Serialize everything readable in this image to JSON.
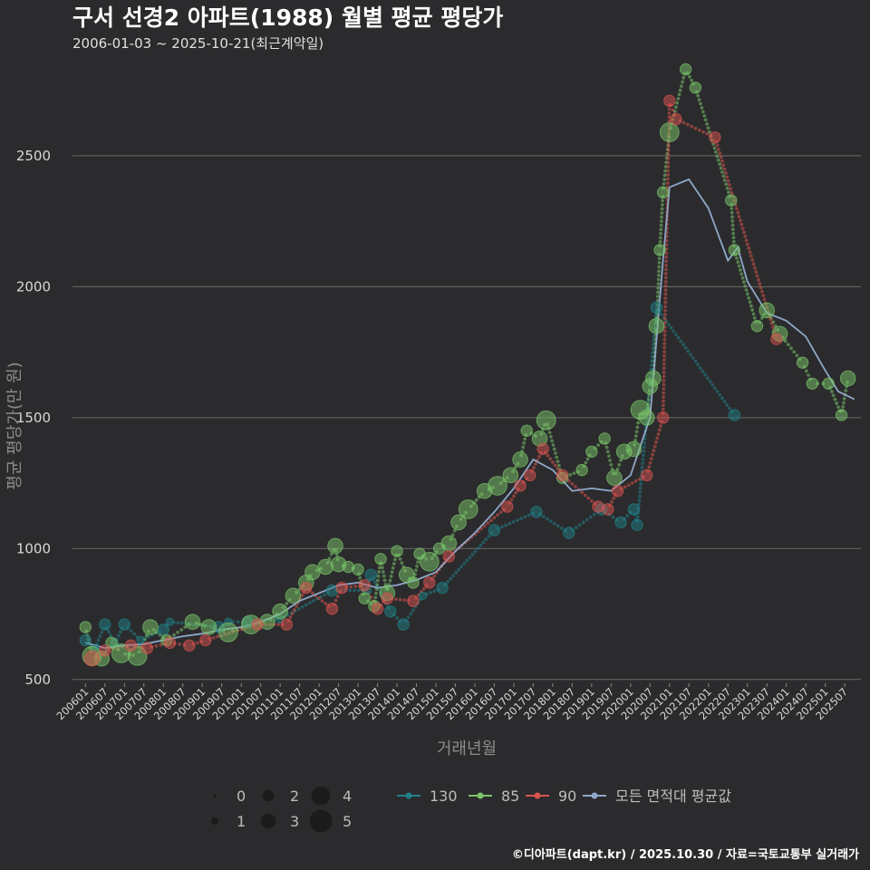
{
  "chart_data": {
    "type": "scatter",
    "title": "구서 선경2 아파트(1988) 월별 평균 평당가",
    "subtitle": "2006-01-03 ~ 2025-10-21(최근계약일)",
    "xlabel": "거래년월",
    "ylabel": "평균 평당가(만 원)",
    "caption": "©디아파트(dapt.kr) / 2025.10.30 / 자료=국토교통부 실거래가",
    "yticks": [
      500,
      1000,
      1500,
      2000,
      2500
    ],
    "ylim": [
      430,
      2870
    ],
    "xlim": [
      "2005-09",
      "2025-12"
    ],
    "xticks": [
      "200601",
      "200607",
      "200701",
      "200707",
      "200801",
      "200807",
      "200901",
      "200907",
      "201001",
      "201007",
      "201101",
      "201107",
      "201201",
      "201207",
      "201301",
      "201307",
      "201401",
      "201407",
      "201501",
      "201507",
      "201601",
      "201607",
      "201701",
      "201707",
      "201801",
      "201807",
      "201901",
      "201907",
      "202001",
      "202007",
      "202101",
      "202107",
      "202201",
      "202207",
      "202301",
      "202307",
      "202401",
      "202407",
      "202501",
      "202507"
    ],
    "grid": true,
    "size_legend": {
      "values": [
        "0",
        "1",
        "2",
        "3",
        "4",
        "5"
      ]
    },
    "series": [
      {
        "name": "130",
        "color": "#1f7f86",
        "points": [
          {
            "x": "2006-01",
            "y": 650,
            "s": 2
          },
          {
            "x": "2006-04",
            "y": 620,
            "s": 1
          },
          {
            "x": "2006-07",
            "y": 710,
            "s": 2
          },
          {
            "x": "2006-10",
            "y": 640,
            "s": 1
          },
          {
            "x": "2007-01",
            "y": 710,
            "s": 2
          },
          {
            "x": "2007-06",
            "y": 650,
            "s": 1
          },
          {
            "x": "2008-01",
            "y": 690,
            "s": 2
          },
          {
            "x": "2008-03",
            "y": 720,
            "s": 1
          },
          {
            "x": "2009-06",
            "y": 700,
            "s": 2
          },
          {
            "x": "2009-09",
            "y": 720,
            "s": 1
          },
          {
            "x": "2010-03",
            "y": 720,
            "s": 2
          },
          {
            "x": "2011-01",
            "y": 730,
            "s": 1
          },
          {
            "x": "2012-05",
            "y": 840,
            "s": 2
          },
          {
            "x": "2013-04",
            "y": 840,
            "s": 1
          },
          {
            "x": "2013-05",
            "y": 900,
            "s": 2
          },
          {
            "x": "2013-11",
            "y": 760,
            "s": 2
          },
          {
            "x": "2014-03",
            "y": 710,
            "s": 2
          },
          {
            "x": "2014-09",
            "y": 820,
            "s": 1
          },
          {
            "x": "2015-03",
            "y": 850,
            "s": 2
          },
          {
            "x": "2016-07",
            "y": 1070,
            "s": 2
          },
          {
            "x": "2017-08",
            "y": 1140,
            "s": 2
          },
          {
            "x": "2018-06",
            "y": 1060,
            "s": 2
          },
          {
            "x": "2019-04",
            "y": 1150,
            "s": 2
          },
          {
            "x": "2019-10",
            "y": 1100,
            "s": 2
          },
          {
            "x": "2020-02",
            "y": 1150,
            "s": 2
          },
          {
            "x": "2020-03",
            "y": 1090,
            "s": 2
          },
          {
            "x": "2020-09",
            "y": 1920,
            "s": 2
          },
          {
            "x": "2022-09",
            "y": 1510,
            "s": 2
          }
        ]
      },
      {
        "name": "85",
        "color": "#7ac56a",
        "points": [
          {
            "x": "2006-01",
            "y": 700,
            "s": 2
          },
          {
            "x": "2006-03",
            "y": 590,
            "s": 4
          },
          {
            "x": "2006-06",
            "y": 580,
            "s": 3
          },
          {
            "x": "2006-09",
            "y": 640,
            "s": 2
          },
          {
            "x": "2006-12",
            "y": 600,
            "s": 4
          },
          {
            "x": "2007-05",
            "y": 590,
            "s": 4
          },
          {
            "x": "2007-09",
            "y": 700,
            "s": 3
          },
          {
            "x": "2008-02",
            "y": 650,
            "s": 2
          },
          {
            "x": "2008-10",
            "y": 720,
            "s": 3
          },
          {
            "x": "2009-03",
            "y": 700,
            "s": 3
          },
          {
            "x": "2009-09",
            "y": 680,
            "s": 4
          },
          {
            "x": "2010-04",
            "y": 710,
            "s": 4
          },
          {
            "x": "2010-09",
            "y": 720,
            "s": 3
          },
          {
            "x": "2011-01",
            "y": 760,
            "s": 3
          },
          {
            "x": "2011-05",
            "y": 820,
            "s": 3
          },
          {
            "x": "2011-09",
            "y": 870,
            "s": 3
          },
          {
            "x": "2011-11",
            "y": 910,
            "s": 3
          },
          {
            "x": "2012-03",
            "y": 930,
            "s": 3
          },
          {
            "x": "2012-06",
            "y": 1010,
            "s": 3
          },
          {
            "x": "2012-07",
            "y": 940,
            "s": 3
          },
          {
            "x": "2012-10",
            "y": 930,
            "s": 2
          },
          {
            "x": "2013-01",
            "y": 920,
            "s": 2
          },
          {
            "x": "2013-03",
            "y": 810,
            "s": 2
          },
          {
            "x": "2013-06",
            "y": 780,
            "s": 2
          },
          {
            "x": "2013-08",
            "y": 960,
            "s": 2
          },
          {
            "x": "2013-10",
            "y": 830,
            "s": 3
          },
          {
            "x": "2014-01",
            "y": 990,
            "s": 2
          },
          {
            "x": "2014-04",
            "y": 900,
            "s": 3
          },
          {
            "x": "2014-06",
            "y": 870,
            "s": 2
          },
          {
            "x": "2014-08",
            "y": 980,
            "s": 2
          },
          {
            "x": "2014-11",
            "y": 950,
            "s": 4
          },
          {
            "x": "2015-02",
            "y": 1000,
            "s": 2
          },
          {
            "x": "2015-05",
            "y": 1020,
            "s": 3
          },
          {
            "x": "2015-08",
            "y": 1100,
            "s": 3
          },
          {
            "x": "2015-11",
            "y": 1150,
            "s": 4
          },
          {
            "x": "2016-04",
            "y": 1220,
            "s": 3
          },
          {
            "x": "2016-08",
            "y": 1240,
            "s": 4
          },
          {
            "x": "2016-12",
            "y": 1280,
            "s": 3
          },
          {
            "x": "2017-03",
            "y": 1340,
            "s": 3
          },
          {
            "x": "2017-05",
            "y": 1450,
            "s": 2
          },
          {
            "x": "2017-09",
            "y": 1420,
            "s": 3
          },
          {
            "x": "2017-11",
            "y": 1490,
            "s": 4
          },
          {
            "x": "2018-04",
            "y": 1270,
            "s": 2
          },
          {
            "x": "2018-10",
            "y": 1300,
            "s": 2
          },
          {
            "x": "2019-01",
            "y": 1370,
            "s": 2
          },
          {
            "x": "2019-05",
            "y": 1420,
            "s": 2
          },
          {
            "x": "2019-08",
            "y": 1270,
            "s": 3
          },
          {
            "x": "2019-11",
            "y": 1370,
            "s": 3
          },
          {
            "x": "2020-02",
            "y": 1380,
            "s": 3
          },
          {
            "x": "2020-04",
            "y": 1530,
            "s": 4
          },
          {
            "x": "2020-06",
            "y": 1500,
            "s": 3
          },
          {
            "x": "2020-07",
            "y": 1620,
            "s": 3
          },
          {
            "x": "2020-08",
            "y": 1650,
            "s": 3
          },
          {
            "x": "2020-09",
            "y": 1850,
            "s": 3
          },
          {
            "x": "2020-10",
            "y": 2140,
            "s": 2
          },
          {
            "x": "2020-11",
            "y": 2360,
            "s": 2
          },
          {
            "x": "2021-01",
            "y": 2590,
            "s": 4
          },
          {
            "x": "2021-06",
            "y": 2830,
            "s": 2
          },
          {
            "x": "2021-09",
            "y": 2760,
            "s": 2
          },
          {
            "x": "2022-08",
            "y": 2330,
            "s": 2
          },
          {
            "x": "2022-09",
            "y": 2140,
            "s": 2
          },
          {
            "x": "2023-04",
            "y": 1850,
            "s": 2
          },
          {
            "x": "2023-07",
            "y": 1910,
            "s": 3
          },
          {
            "x": "2023-11",
            "y": 1820,
            "s": 3
          },
          {
            "x": "2024-06",
            "y": 1710,
            "s": 2
          },
          {
            "x": "2024-09",
            "y": 1630,
            "s": 2
          },
          {
            "x": "2025-02",
            "y": 1630,
            "s": 2
          },
          {
            "x": "2025-06",
            "y": 1510,
            "s": 2
          },
          {
            "x": "2025-08",
            "y": 1650,
            "s": 3
          }
        ]
      },
      {
        "name": "90",
        "color": "#d9534f",
        "points": [
          {
            "x": "2006-03",
            "y": 580,
            "s": 3
          },
          {
            "x": "2006-07",
            "y": 610,
            "s": 2
          },
          {
            "x": "2007-03",
            "y": 630,
            "s": 2
          },
          {
            "x": "2007-08",
            "y": 620,
            "s": 2
          },
          {
            "x": "2008-03",
            "y": 640,
            "s": 2
          },
          {
            "x": "2008-09",
            "y": 630,
            "s": 2
          },
          {
            "x": "2009-02",
            "y": 650,
            "s": 2
          },
          {
            "x": "2010-06",
            "y": 710,
            "s": 2
          },
          {
            "x": "2011-03",
            "y": 710,
            "s": 2
          },
          {
            "x": "2011-09",
            "y": 850,
            "s": 2
          },
          {
            "x": "2012-05",
            "y": 770,
            "s": 2
          },
          {
            "x": "2012-08",
            "y": 850,
            "s": 2
          },
          {
            "x": "2013-03",
            "y": 860,
            "s": 2
          },
          {
            "x": "2013-07",
            "y": 770,
            "s": 2
          },
          {
            "x": "2013-10",
            "y": 810,
            "s": 2
          },
          {
            "x": "2014-06",
            "y": 800,
            "s": 2
          },
          {
            "x": "2014-11",
            "y": 870,
            "s": 2
          },
          {
            "x": "2015-05",
            "y": 970,
            "s": 2
          },
          {
            "x": "2016-11",
            "y": 1160,
            "s": 2
          },
          {
            "x": "2017-03",
            "y": 1240,
            "s": 2
          },
          {
            "x": "2017-06",
            "y": 1280,
            "s": 2
          },
          {
            "x": "2017-10",
            "y": 1380,
            "s": 2
          },
          {
            "x": "2018-04",
            "y": 1280,
            "s": 2
          },
          {
            "x": "2019-03",
            "y": 1160,
            "s": 2
          },
          {
            "x": "2019-06",
            "y": 1150,
            "s": 2
          },
          {
            "x": "2019-09",
            "y": 1220,
            "s": 2
          },
          {
            "x": "2020-06",
            "y": 1280,
            "s": 2
          },
          {
            "x": "2020-11",
            "y": 1500,
            "s": 2
          },
          {
            "x": "2021-01",
            "y": 2710,
            "s": 2
          },
          {
            "x": "2021-03",
            "y": 2640,
            "s": 2
          },
          {
            "x": "2022-03",
            "y": 2570,
            "s": 2
          },
          {
            "x": "2023-10",
            "y": 1800,
            "s": 2
          }
        ]
      }
    ],
    "avg_line": {
      "name": "모든 면적대 평균값",
      "color": "#8fa8c8",
      "points": [
        {
          "x": "2006-01",
          "y": 640
        },
        {
          "x": "2006-07",
          "y": 620
        },
        {
          "x": "2007-01",
          "y": 630
        },
        {
          "x": "2007-07",
          "y": 635
        },
        {
          "x": "2008-01",
          "y": 650
        },
        {
          "x": "2008-07",
          "y": 665
        },
        {
          "x": "2009-01",
          "y": 675
        },
        {
          "x": "2009-07",
          "y": 690
        },
        {
          "x": "2010-01",
          "y": 700
        },
        {
          "x": "2010-07",
          "y": 720
        },
        {
          "x": "2011-01",
          "y": 750
        },
        {
          "x": "2011-07",
          "y": 800
        },
        {
          "x": "2012-01",
          "y": 830
        },
        {
          "x": "2012-07",
          "y": 860
        },
        {
          "x": "2013-01",
          "y": 870
        },
        {
          "x": "2013-07",
          "y": 850
        },
        {
          "x": "2014-01",
          "y": 860
        },
        {
          "x": "2014-07",
          "y": 880
        },
        {
          "x": "2015-01",
          "y": 910
        },
        {
          "x": "2015-07",
          "y": 990
        },
        {
          "x": "2016-01",
          "y": 1060
        },
        {
          "x": "2016-07",
          "y": 1140
        },
        {
          "x": "2017-01",
          "y": 1230
        },
        {
          "x": "2017-07",
          "y": 1340
        },
        {
          "x": "2018-01",
          "y": 1300
        },
        {
          "x": "2018-07",
          "y": 1220
        },
        {
          "x": "2019-01",
          "y": 1230
        },
        {
          "x": "2019-07",
          "y": 1220
        },
        {
          "x": "2020-01",
          "y": 1280
        },
        {
          "x": "2020-07",
          "y": 1500
        },
        {
          "x": "2020-11",
          "y": 2100
        },
        {
          "x": "2021-01",
          "y": 2380
        },
        {
          "x": "2021-07",
          "y": 2410
        },
        {
          "x": "2022-01",
          "y": 2300
        },
        {
          "x": "2022-07",
          "y": 2100
        },
        {
          "x": "2022-10",
          "y": 2150
        },
        {
          "x": "2023-01",
          "y": 2020
        },
        {
          "x": "2023-07",
          "y": 1900
        },
        {
          "x": "2024-01",
          "y": 1870
        },
        {
          "x": "2024-07",
          "y": 1810
        },
        {
          "x": "2025-01",
          "y": 1680
        },
        {
          "x": "2025-05",
          "y": 1600
        },
        {
          "x": "2025-10",
          "y": 1570
        }
      ]
    }
  }
}
